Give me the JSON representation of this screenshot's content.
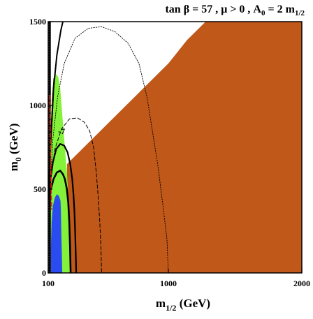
{
  "chart_data": {
    "type": "area",
    "title": {
      "text": "tan β = 57 ,  μ > 0 , A",
      "a0_sub": "0",
      "eq": " = 2 m",
      "m_sub": "1/2"
    },
    "xlabel": {
      "main": "m",
      "sub": "1/2",
      "rest": " (GeV)"
    },
    "ylabel": {
      "main": "m",
      "sub": "0",
      "rest": " (GeV)"
    },
    "xlim": [
      100,
      2000
    ],
    "ylim": [
      0,
      1500
    ],
    "x_ticks": [
      {
        "value": 100,
        "label": "100"
      },
      {
        "value": 1000,
        "label": "1000"
      },
      {
        "value": 2000,
        "label": "2000"
      }
    ],
    "y_ticks": [
      {
        "value": 0,
        "label": "0"
      },
      {
        "value": 500,
        "label": "500"
      },
      {
        "value": 1000,
        "label": "1000"
      },
      {
        "value": 1500,
        "label": "1500"
      }
    ],
    "annotations": [
      {
        "text": "-7",
        "x": 200,
        "y": 830
      }
    ],
    "colors": {
      "brown": "#c0581a",
      "green": "#84f23a",
      "blue": "#2a4bf0",
      "red": "#e8201a",
      "black": "#000000"
    },
    "regions": [
      {
        "id": "brown-region",
        "color": "brown",
        "points": [
          [
            241,
            0
          ],
          [
            241,
            650
          ],
          [
            1000,
            1250
          ],
          [
            1140,
            1390
          ],
          [
            1280,
            1500
          ],
          [
            2000,
            1500
          ],
          [
            2000,
            0
          ]
        ]
      },
      {
        "id": "green-region",
        "color": "green",
        "points": [
          [
            120,
            0
          ],
          [
            115,
            150
          ],
          [
            112,
            300
          ],
          [
            112,
            500
          ],
          [
            115,
            700
          ],
          [
            120,
            900
          ],
          [
            128,
            1060
          ],
          [
            140,
            1160
          ],
          [
            155,
            1190
          ],
          [
            175,
            1170
          ],
          [
            190,
            1100
          ],
          [
            200,
            1000
          ],
          [
            210,
            900
          ],
          [
            220,
            800
          ],
          [
            230,
            700
          ],
          [
            240,
            600
          ],
          [
            248,
            500
          ],
          [
            252,
            400
          ],
          [
            255,
            300
          ],
          [
            258,
            200
          ],
          [
            262,
            100
          ],
          [
            266,
            0
          ]
        ]
      },
      {
        "id": "blue-region",
        "color": "blue",
        "points": [
          [
            120,
            0
          ],
          [
            120,
            150
          ],
          [
            125,
            300
          ],
          [
            135,
            400
          ],
          [
            150,
            450
          ],
          [
            165,
            470
          ],
          [
            180,
            460
          ],
          [
            192,
            430
          ],
          [
            195,
            370
          ],
          [
            198,
            250
          ],
          [
            202,
            120
          ],
          [
            205,
            0
          ]
        ]
      }
    ],
    "lines": [
      {
        "id": "thick-contour-inner",
        "style": "solid",
        "width": 2.6,
        "points": [
          [
            120,
            500
          ],
          [
            140,
            560
          ],
          [
            165,
            600
          ],
          [
            190,
            610
          ],
          [
            210,
            590
          ],
          [
            225,
            560
          ],
          [
            240,
            500
          ],
          [
            250,
            420
          ],
          [
            258,
            300
          ],
          [
            264,
            150
          ],
          [
            268,
            0
          ]
        ]
      },
      {
        "id": "thick-contour-outer",
        "style": "solid",
        "width": 2.2,
        "points": [
          [
            108,
            480
          ],
          [
            118,
            560
          ],
          [
            135,
            660
          ],
          [
            160,
            740
          ],
          [
            190,
            770
          ],
          [
            220,
            760
          ],
          [
            245,
            720
          ],
          [
            265,
            650
          ],
          [
            280,
            560
          ],
          [
            290,
            460
          ],
          [
            297,
            360
          ],
          [
            302,
            240
          ],
          [
            306,
            120
          ],
          [
            310,
            0
          ]
        ]
      },
      {
        "id": "steep-contour-left",
        "style": "solid",
        "width": 2,
        "points": [
          [
            100,
            440
          ],
          [
            108,
            580
          ],
          [
            118,
            780
          ],
          [
            130,
            950
          ],
          [
            138,
            1080
          ],
          [
            145,
            1160
          ]
        ]
      },
      {
        "id": "steep-contour-top",
        "style": "solid",
        "width": 2,
        "points": [
          [
            105,
            500
          ],
          [
            120,
            800
          ],
          [
            140,
            1100
          ],
          [
            165,
            1300
          ],
          [
            195,
            1450
          ],
          [
            210,
            1500
          ]
        ]
      },
      {
        "id": "dashed-contour-mid",
        "style": "dash",
        "width": 1,
        "points": [
          [
            120,
            560
          ],
          [
            150,
            740
          ],
          [
            200,
            860
          ],
          [
            260,
            920
          ],
          [
            320,
            925
          ],
          [
            370,
            900
          ],
          [
            410,
            850
          ],
          [
            440,
            750
          ],
          [
            460,
            600
          ],
          [
            475,
            450
          ],
          [
            487,
            300
          ],
          [
            495,
            150
          ],
          [
            500,
            0
          ]
        ]
      },
      {
        "id": "dashed-contour-outer",
        "style": "dot",
        "width": 0.9,
        "points": [
          [
            115,
            500
          ],
          [
            135,
            800
          ],
          [
            170,
            1050
          ],
          [
            220,
            1250
          ],
          [
            300,
            1400
          ],
          [
            400,
            1460
          ],
          [
            500,
            1470
          ],
          [
            600,
            1440
          ],
          [
            700,
            1370
          ],
          [
            780,
            1250
          ],
          [
            840,
            1050
          ],
          [
            880,
            850
          ],
          [
            920,
            650
          ],
          [
            960,
            400
          ],
          [
            990,
            200
          ],
          [
            1000,
            0
          ]
        ]
      },
      {
        "id": "vertical-dotted-boundary",
        "style": "dot",
        "width": 2,
        "points": [
          [
            108,
            0
          ],
          [
            108,
            1500
          ]
        ]
      },
      {
        "id": "vertical-solid-boundary",
        "style": "solid",
        "width": 2,
        "points": [
          [
            114,
            0
          ],
          [
            114,
            1500
          ]
        ]
      },
      {
        "id": "red-dashed-line",
        "style": "dashred",
        "width": 1.6,
        "color": "red",
        "points": [
          [
            112,
            1060
          ],
          [
            114,
            900
          ],
          [
            117,
            750
          ],
          [
            120,
            600
          ],
          [
            123,
            450
          ],
          [
            126,
            380
          ]
        ]
      }
    ]
  }
}
